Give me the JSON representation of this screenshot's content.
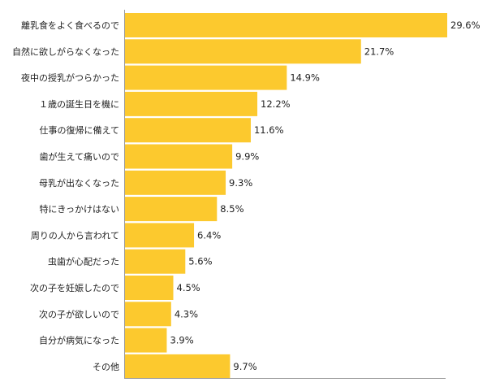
{
  "chart_data": {
    "type": "bar",
    "orientation": "horizontal",
    "title": "",
    "xlabel": "",
    "ylabel": "",
    "unit": "%",
    "xlim": [
      0,
      30
    ],
    "grid": false,
    "categories": [
      "離乳食をよく食べるので",
      "自然に欲しがらなくなった",
      "夜中の授乳がつらかった",
      "１歳の誕生日を機に",
      "仕事の復帰に備えて",
      "歯が生えて痛いので",
      "母乳が出なくなった",
      "特にきっかけはない",
      "周りの人から言われて",
      "虫歯が心配だった",
      "次の子を妊娠したので",
      "次の子が欲しいので",
      "自分が病気になった",
      "その他"
    ],
    "values": [
      29.6,
      21.7,
      14.9,
      12.2,
      11.6,
      9.9,
      9.3,
      8.5,
      6.4,
      5.6,
      4.5,
      4.3,
      3.9,
      9.7
    ],
    "value_labels": [
      "29.6%",
      "21.7%",
      "14.9%",
      "12.2%",
      "11.6%",
      "9.9%",
      "9.3%",
      "8.5%",
      "6.4%",
      "5.6%",
      "4.5%",
      "4.3%",
      "3.9%",
      "9.7%"
    ]
  },
  "colors": {
    "bar": "#FCC92E",
    "axis": "#9a9a9a",
    "text": "#222222"
  }
}
